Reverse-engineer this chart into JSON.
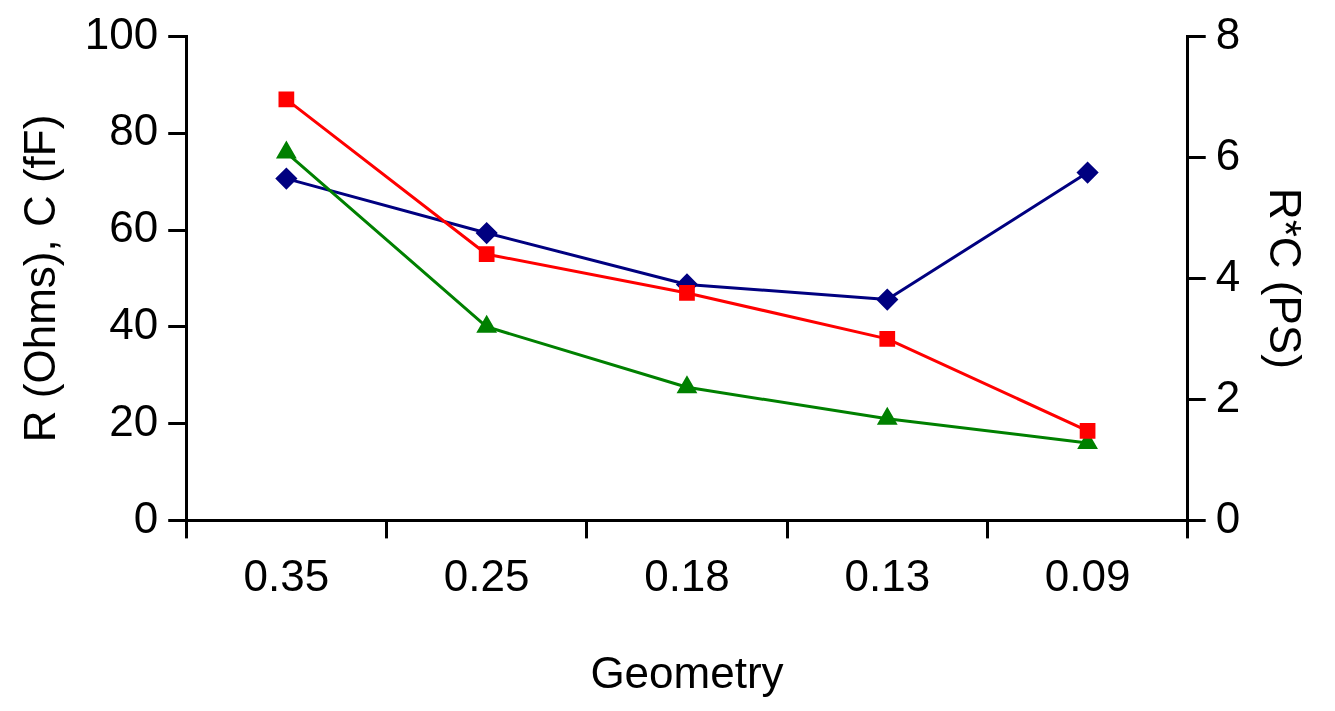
{
  "chart_data": {
    "type": "line",
    "xlabel": "Geometry",
    "ylabel": "R (Ohms), C (fF)",
    "y2label": "R*C (PS)",
    "categories": [
      "0.35",
      "0.25",
      "0.18",
      "0.13",
      "0.09"
    ],
    "series": [
      {
        "color": "#ff0000",
        "marker": "square",
        "values": [
          87,
          55,
          47,
          37.5,
          18.5
        ]
      },
      {
        "color": "#008000",
        "marker": "triangle",
        "values": [
          76,
          40,
          27.5,
          21,
          16
        ]
      },
      {
        "color": "#000080",
        "marker": "diamond",
        "axis": "y2",
        "values": [
          5.65,
          4.75,
          3.9,
          3.65,
          5.75
        ]
      }
    ],
    "ylim": [
      0,
      100
    ],
    "yticks": [
      0,
      20,
      40,
      60,
      80,
      100
    ],
    "y2lim": [
      0,
      8
    ],
    "y2ticks": [
      0,
      2,
      4,
      6,
      8
    ],
    "grid": false,
    "legend": false,
    "line_style": "solid"
  }
}
